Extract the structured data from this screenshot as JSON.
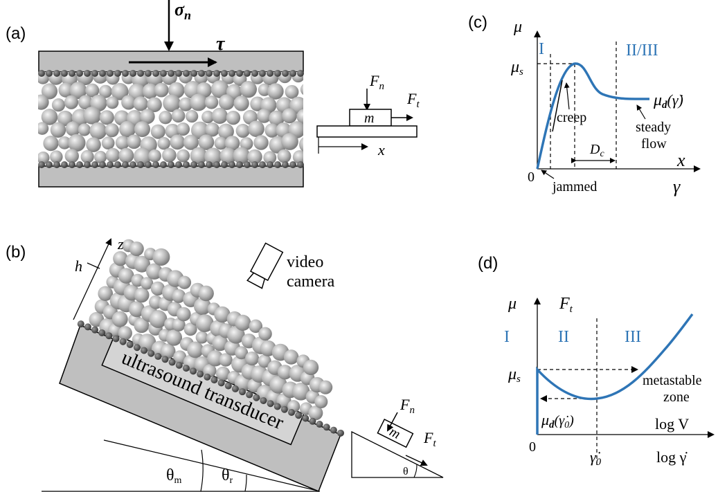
{
  "panel_a": {
    "label": "(a)",
    "sigma_n": "σ",
    "sigma_n_sub": "n",
    "tau": "τ",
    "block_m": "m",
    "fn": "F",
    "fn_sub": "n",
    "ft": "F",
    "ft_sub": "t",
    "x": "x"
  },
  "panel_b": {
    "label": "(b)",
    "z": "z",
    "h": "h",
    "camera_line1": "video",
    "camera_line2": "camera",
    "transducer": "ultrasound transducer",
    "theta_m": "θ",
    "theta_m_sub": "m",
    "theta_r": "θ",
    "theta_r_sub": "r",
    "block_m": "m",
    "fn": "F",
    "fn_sub": "n",
    "ft": "F",
    "ft_sub": "t",
    "theta": "θ"
  },
  "panel_c": {
    "label": "(c)",
    "mu": "μ",
    "region_1": "I",
    "region_23": "II/III",
    "mu_s": "μ",
    "mu_s_sub": "s",
    "creep": "creep",
    "mu_d": "μ",
    "mu_d_sub": "d",
    "mu_d_arg": "(γ̇)",
    "steady1": "steady",
    "steady2": "flow",
    "dc": "D",
    "dc_sub": "c",
    "x": "x",
    "zero": "0",
    "jammed": "jammed",
    "gamma": "γ"
  },
  "panel_d": {
    "label": "(d)",
    "mu": "μ",
    "ft": "F",
    "ft_sub": "t",
    "region_1": "I",
    "region_2": "II",
    "region_3": "III",
    "mu_s": "μ",
    "mu_s_sub": "s",
    "metastable1": "metastable",
    "metastable2": "zone",
    "mu_d": "μ",
    "mu_d_sub": "d",
    "mu_d_arg": "(γ̇",
    "mu_d_arg_sub": "0",
    "mu_d_arg_close": ")",
    "logv": "log V",
    "zero": "0",
    "gamma0": "γ̇",
    "gamma0_sub": "0",
    "loggamma": "log γ̇"
  },
  "colors": {
    "curve": "#2e75b6",
    "gray": "#bfbfbf",
    "bead": "#555555"
  }
}
